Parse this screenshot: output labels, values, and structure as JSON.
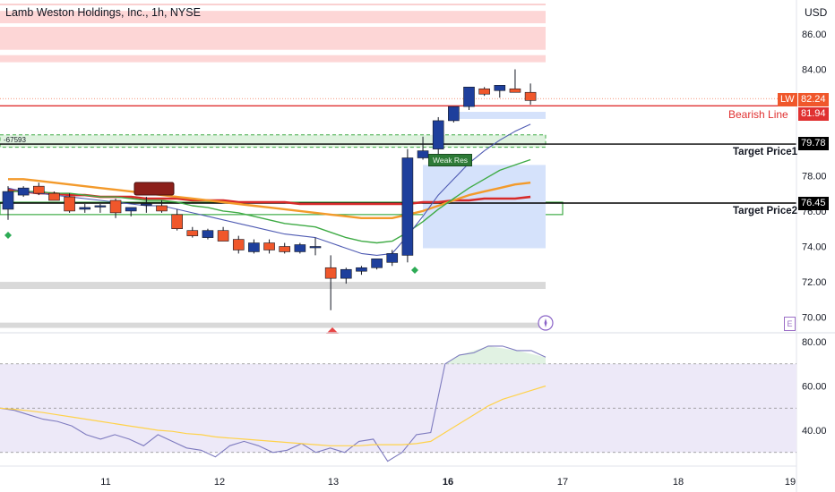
{
  "header": {
    "title": "Lamb Weston Holdings, Inc., 1h, NYSE",
    "currency": "USD"
  },
  "colors": {
    "bull_candle": "#1e3f9c",
    "bear_candle": "#f0572b",
    "bearish_line": "#e03131",
    "target_line": "#000000",
    "ema_fast": "#4f5bb3",
    "ema_green": "#3fab45",
    "ema_orange": "#f39a2b",
    "ema_red": "#d72a2a",
    "rsi_line": "#7e7bbf",
    "rsi_ma": "#ffd24a",
    "rsi_band": "#ede9f8"
  },
  "labels": {
    "bearish_line": "Bearish Line",
    "target1": "Target Price1",
    "target2": "Target Price2",
    "left_marker": "-67593",
    "weak_res": "Weak Res",
    "e_button": "E"
  },
  "price_tags": {
    "lw_symbol": "LW",
    "lw_price": "82.24",
    "bearish_price": "81.94",
    "target1_price": "79.78",
    "target2_price": "76.45"
  },
  "chart_data": [
    {
      "type": "candlestick",
      "title": "Lamb Weston Holdings, Inc., 1h, NYSE",
      "x_ticks": [
        "11",
        "12",
        "13",
        "16",
        "17",
        "18",
        "19"
      ],
      "y_ticks": [
        "70.00",
        "72.00",
        "74.00",
        "76.00",
        "78.00",
        "84.00",
        "86.00"
      ],
      "ylim": [
        69.5,
        87.5
      ],
      "candles": [
        {
          "o": 76.1,
          "h": 77.4,
          "l": 75.5,
          "c": 77.1
        },
        {
          "o": 76.9,
          "h": 77.4,
          "l": 76.8,
          "c": 77.3
        },
        {
          "o": 77.4,
          "h": 77.6,
          "l": 76.9,
          "c": 77.0
        },
        {
          "o": 77.0,
          "h": 77.1,
          "l": 76.7,
          "c": 76.6
        },
        {
          "o": 76.8,
          "h": 77.0,
          "l": 75.9,
          "c": 76.0
        },
        {
          "o": 76.1,
          "h": 76.4,
          "l": 75.9,
          "c": 76.2
        },
        {
          "o": 76.3,
          "h": 76.4,
          "l": 75.9,
          "c": 76.3
        },
        {
          "o": 76.6,
          "h": 76.7,
          "l": 75.6,
          "c": 75.9
        },
        {
          "o": 76.0,
          "h": 76.2,
          "l": 75.7,
          "c": 76.2
        },
        {
          "o": 76.4,
          "h": 76.8,
          "l": 75.9,
          "c": 76.4
        },
        {
          "o": 76.3,
          "h": 76.6,
          "l": 75.9,
          "c": 76.0
        },
        {
          "o": 75.8,
          "h": 76.1,
          "l": 74.9,
          "c": 75.0
        },
        {
          "o": 74.9,
          "h": 75.1,
          "l": 74.5,
          "c": 74.6
        },
        {
          "o": 74.5,
          "h": 75.0,
          "l": 74.4,
          "c": 74.9
        },
        {
          "o": 74.9,
          "h": 75.1,
          "l": 74.4,
          "c": 74.3
        },
        {
          "o": 74.4,
          "h": 74.6,
          "l": 73.6,
          "c": 73.8
        },
        {
          "o": 73.7,
          "h": 74.4,
          "l": 73.6,
          "c": 74.2
        },
        {
          "o": 74.2,
          "h": 74.4,
          "l": 73.6,
          "c": 73.8
        },
        {
          "o": 74.0,
          "h": 74.2,
          "l": 73.6,
          "c": 73.7
        },
        {
          "o": 73.7,
          "h": 74.2,
          "l": 73.6,
          "c": 74.1
        },
        {
          "o": 74.0,
          "h": 74.5,
          "l": 73.5,
          "c": 74.0
        },
        {
          "o": 72.8,
          "h": 73.5,
          "l": 70.4,
          "c": 72.2
        },
        {
          "o": 72.2,
          "h": 72.8,
          "l": 71.9,
          "c": 72.7
        },
        {
          "o": 72.6,
          "h": 72.9,
          "l": 72.4,
          "c": 72.8
        },
        {
          "o": 72.8,
          "h": 73.2,
          "l": 72.7,
          "c": 73.3
        },
        {
          "o": 73.1,
          "h": 73.8,
          "l": 72.9,
          "c": 73.6
        },
        {
          "o": 73.5,
          "h": 79.5,
          "l": 73.1,
          "c": 79.0
        },
        {
          "o": 79.0,
          "h": 80.2,
          "l": 78.9,
          "c": 79.4
        },
        {
          "o": 79.5,
          "h": 81.3,
          "l": 79.2,
          "c": 81.1
        },
        {
          "o": 81.1,
          "h": 81.9,
          "l": 81.0,
          "c": 81.9
        },
        {
          "o": 81.9,
          "h": 82.9,
          "l": 81.7,
          "c": 83.0
        },
        {
          "o": 82.9,
          "h": 83.0,
          "l": 82.5,
          "c": 82.6
        },
        {
          "o": 82.8,
          "h": 83.1,
          "l": 82.4,
          "c": 83.1
        },
        {
          "o": 82.9,
          "h": 84.0,
          "l": 82.8,
          "c": 82.7
        },
        {
          "o": 82.7,
          "h": 83.2,
          "l": 82.0,
          "c": 82.24
        }
      ],
      "ema_fast": [
        77.3,
        77.1,
        77.0,
        76.9,
        76.8,
        76.7,
        76.6,
        76.5,
        76.4,
        76.3,
        76.3,
        76.1,
        75.9,
        75.7,
        75.5,
        75.3,
        75.1,
        74.9,
        74.7,
        74.6,
        74.5,
        74.2,
        73.9,
        73.6,
        73.5,
        73.6,
        74.6,
        75.7,
        76.9,
        77.8,
        78.7,
        79.4,
        80.0,
        80.5,
        80.9
      ],
      "ema_green": [
        77.1,
        77.1,
        77.1,
        77.0,
        77.0,
        76.9,
        76.8,
        76.8,
        76.7,
        76.6,
        76.6,
        76.5,
        76.3,
        76.2,
        76.0,
        75.9,
        75.7,
        75.5,
        75.3,
        75.2,
        75.1,
        74.8,
        74.5,
        74.3,
        74.2,
        74.3,
        74.8,
        75.4,
        76.1,
        76.7,
        77.3,
        77.8,
        78.3,
        78.6,
        78.9
      ],
      "ema_orange": [
        77.8,
        77.8,
        77.7,
        77.6,
        77.5,
        77.4,
        77.3,
        77.2,
        77.1,
        77.0,
        76.9,
        76.8,
        76.7,
        76.6,
        76.5,
        76.4,
        76.3,
        76.2,
        76.1,
        76.0,
        75.9,
        75.8,
        75.7,
        75.6,
        75.6,
        75.6,
        75.8,
        76.0,
        76.3,
        76.6,
        76.9,
        77.1,
        77.3,
        77.5,
        77.6
      ],
      "ema_red": [
        77.2,
        77.1,
        77.0,
        77.0,
        76.9,
        76.9,
        76.8,
        76.8,
        76.8,
        76.7,
        76.7,
        76.7,
        76.6,
        76.6,
        76.6,
        76.5,
        76.5,
        76.5,
        76.5,
        76.4,
        76.4,
        76.4,
        76.4,
        76.4,
        76.4,
        76.4,
        76.4,
        76.5,
        76.5,
        76.6,
        76.6,
        76.7,
        76.7,
        76.7,
        76.8
      ],
      "levels": {
        "lw_price": 82.24,
        "bearish_line": 81.94,
        "target_price1": 79.78,
        "target_price2": 76.45
      },
      "zones": [
        {
          "kind": "resistance",
          "from": 85.1,
          "to": 86.4
        },
        {
          "kind": "resistance",
          "from": 86.6,
          "to": 87.3
        },
        {
          "kind": "resistance",
          "from": 84.4,
          "to": 84.8
        },
        {
          "kind": "support",
          "from": 71.6,
          "to": 72.0
        },
        {
          "kind": "support",
          "from": 69.4,
          "to": 69.7
        },
        {
          "kind": "green",
          "from": 79.6,
          "to": 80.3
        },
        {
          "kind": "green-outline",
          "from": 75.8,
          "to": 76.5
        }
      ]
    },
    {
      "type": "line",
      "title": "",
      "y_ticks": [
        "40.00",
        "60.00",
        "80.00"
      ],
      "ylim": [
        27,
        82
      ],
      "bands": [
        30,
        50,
        70
      ],
      "rsi": [
        50,
        49,
        47,
        45,
        44,
        42,
        38,
        36,
        38,
        36,
        33,
        38,
        35,
        32,
        31,
        28,
        33,
        35,
        33,
        30,
        31,
        34,
        30,
        32,
        30,
        35,
        36,
        26,
        30,
        38,
        39,
        70,
        74,
        75,
        78,
        78,
        76,
        76,
        73
      ],
      "rsi_ma": [
        50,
        49.5,
        48.8,
        48,
        47,
        46,
        45,
        44,
        43,
        42,
        41,
        40,
        39.5,
        38.5,
        38,
        37,
        36.5,
        36,
        35.5,
        35,
        34.5,
        34,
        33.5,
        33,
        33,
        33,
        33.5,
        33.5,
        33.5,
        34,
        35,
        39,
        43,
        47,
        51,
        54,
        56,
        58,
        60
      ]
    }
  ]
}
